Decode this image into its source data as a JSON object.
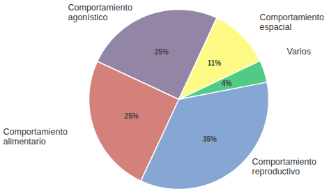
{
  "chart_data": {
    "type": "pie",
    "categories": [
      "Comportamiento\nagonístico",
      "Comportamiento\nespacial",
      "Varios",
      "Comportamiento\nreproductivo",
      "Comportamiento\nalimentario"
    ],
    "values": [
      25,
      11,
      4,
      35,
      25
    ],
    "value_labels": [
      "25%",
      "11%",
      "4%",
      "35%",
      "25%"
    ],
    "colors": [
      "#9385a5",
      "#fdfb85",
      "#4fcb86",
      "#86a7d3",
      "#d4817b"
    ],
    "data_labels": true
  }
}
